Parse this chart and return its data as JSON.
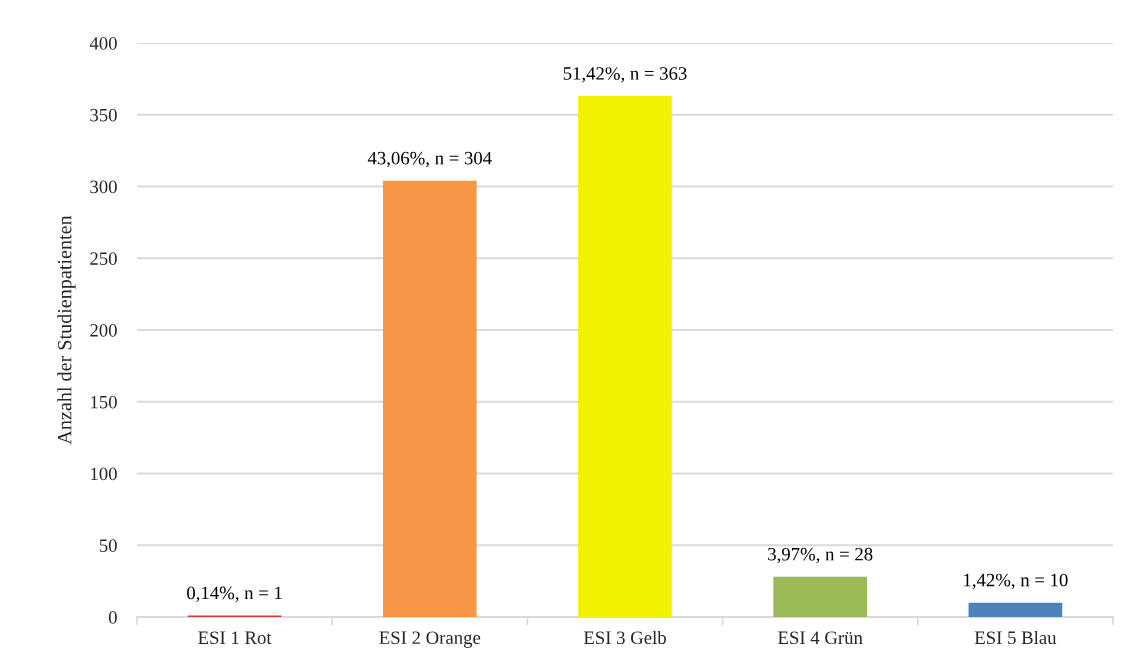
{
  "chart_data": {
    "type": "bar",
    "ylabel": "Anzahl der Studienpatienten",
    "categories": [
      "ESI 1 Rot",
      "ESI 2 Orange",
      "ESI 3 Gelb",
      "ESI 4 Grün",
      "ESI 5 Blau"
    ],
    "values": [
      1,
      304,
      363,
      28,
      10
    ],
    "colors": [
      "#d9383a",
      "#f79646",
      "#f2f200",
      "#9bbb59",
      "#4f81bd"
    ],
    "value_labels": [
      "0,14%, n = 1",
      "43,06%, n = 304",
      "51,42%, n = 363",
      "3,97%, n = 28",
      "1,42%, n = 10"
    ],
    "ylim": [
      0,
      400
    ],
    "yticks": [
      0,
      50,
      100,
      150,
      200,
      250,
      300,
      350,
      400
    ],
    "grid": "y"
  }
}
